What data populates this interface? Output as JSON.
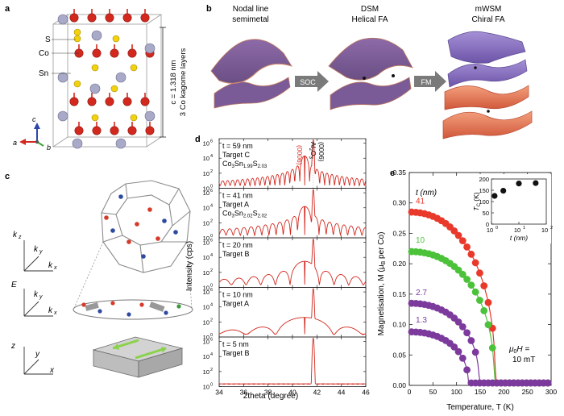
{
  "panels": {
    "a": {
      "letter": "a",
      "labels": {
        "S": "S",
        "Co": "Co",
        "Sn": "Sn"
      },
      "c_value": "c = 1.318 nm",
      "kagome_note": "3 Co kagome layers",
      "axes": {
        "a": "a",
        "b": "b",
        "c": "c"
      }
    },
    "b": {
      "letter": "b",
      "states": [
        {
          "line1": "Nodal line",
          "line2": "semimetal"
        },
        {
          "line1": "DSM",
          "line2": "Helical FA"
        },
        {
          "line1": "mWSM",
          "line2": "Chiral FA"
        }
      ],
      "arrows": [
        "SOC",
        "FM"
      ]
    },
    "c": {
      "letter": "c",
      "axes_k": {
        "kz": "k",
        "kz_sub": "z",
        "ky": "k",
        "ky_sub": "y",
        "kx": "k",
        "kx_sub": "x"
      },
      "axes_e": {
        "E": "E",
        "ky": "k",
        "ky_sub": "y",
        "kx": "k",
        "kx_sub": "x"
      },
      "axes_r": {
        "z": "z",
        "y": "y",
        "x": "x"
      }
    },
    "d": {
      "letter": "d",
      "ylabel": "Intensity (cps)",
      "xlabel": "2theta (degree)",
      "xticks": [
        "34",
        "36",
        "38",
        "40",
        "42",
        "44",
        "46"
      ],
      "yticks": [
        "10",
        "10",
        "10",
        "10"
      ],
      "ytick_exps": [
        "6",
        "4",
        "2",
        "0"
      ],
      "peak_label_sample": "(0006)",
      "peak_label_substrate_main": "Al",
      "peak_label_substrate_sub": "2",
      "peak_label_substrate_o": "O",
      "peak_label_substrate_sub2": "3",
      "peak_label_substrate_2": "(0006)",
      "subpanels": [
        {
          "t": "t = 59 nm",
          "target": "Target C",
          "formula": [
            "Co",
            "3",
            "Sn",
            "1.99",
            "S",
            "2.03"
          ]
        },
        {
          "t": "t = 41 nm",
          "target": "Target A",
          "formula": [
            "Co",
            "3",
            "Sn",
            "2.02",
            "S",
            "2.02"
          ]
        },
        {
          "t": "t = 20 nm",
          "target": "Target B",
          "formula": []
        },
        {
          "t": "t = 10 nm",
          "target": "Target A",
          "formula": []
        },
        {
          "t": "t = 5 nm",
          "target": "Target B",
          "formula": []
        }
      ]
    },
    "e": {
      "letter": "e",
      "ylabel_main": "Magnetisation, M (μ",
      "ylabel_sub": "B",
      "ylabel_end": " per Co)",
      "xlabel": "Temperature, T (K)",
      "legend_title": "t (nm)",
      "field_line1": "μ",
      "field_sub": "0",
      "field_line1_end": "H =",
      "field_line2": "10 mT",
      "xticks": [
        "0",
        "50",
        "100",
        "150",
        "200",
        "250",
        "300"
      ],
      "yticks": [
        "0.00",
        "0.05",
        "0.10",
        "0.15",
        "0.20",
        "0.25",
        "0.30",
        "0.35"
      ],
      "inset": {
        "ylabel_main": "T",
        "ylabel_sub": "C",
        "ylabel_end": " (K)",
        "xlabel": "t (nm)",
        "yticks": [
          "0",
          "50",
          "100",
          "150",
          "200"
        ],
        "xtick_base": "10",
        "xtick_exps": [
          "0",
          "1",
          "2"
        ]
      }
    }
  },
  "chart_data": [
    {
      "type": "line",
      "title": "",
      "xlabel": "2theta (degree)",
      "ylabel": "Intensity (cps)",
      "xlim": [
        34,
        46
      ],
      "yscale": "log",
      "ylim": [
        1,
        1000000
      ],
      "series": [
        {
          "name": "t = 59 nm",
          "peaks": [
            41.0,
            41.7
          ],
          "peak_heights": [
            20000,
            3000000
          ]
        },
        {
          "name": "t = 41 nm",
          "peaks": [
            41.0,
            41.7
          ],
          "peak_heights": [
            15000,
            3000000
          ]
        },
        {
          "name": "t = 20 nm",
          "peaks": [
            41.0,
            41.7
          ],
          "peak_heights": [
            3000,
            3000000
          ]
        },
        {
          "name": "t = 10 nm",
          "peaks": [
            41.0,
            41.7
          ],
          "peak_heights": [
            400,
            3000000
          ]
        },
        {
          "name": "t = 5 nm",
          "peaks": [
            41.7
          ],
          "peak_heights": [
            3000000
          ]
        }
      ]
    },
    {
      "type": "scatter",
      "title": "",
      "xlabel": "Temperature, T (K)",
      "ylabel": "Magnetisation, M (μB per Co)",
      "xlim": [
        0,
        300
      ],
      "ylim": [
        0,
        0.35
      ],
      "series": [
        {
          "name": "41",
          "color": "#e8392b",
          "M0": 0.285,
          "Tc": 182
        },
        {
          "name": "10",
          "color": "#4cc23a",
          "M0": 0.22,
          "Tc": 180
        },
        {
          "name": "2.7",
          "color": "#7b3a9c",
          "M0": 0.135,
          "Tc": 148
        },
        {
          "name": "1.3",
          "color": "#7b3a9c",
          "M0": 0.088,
          "Tc": 125
        }
      ]
    },
    {
      "type": "scatter",
      "title": "",
      "xlabel": "t (nm)",
      "ylabel": "TC (K)",
      "xscale": "log",
      "xlim": [
        1,
        100
      ],
      "ylim": [
        0,
        200
      ],
      "x": [
        1.3,
        2.7,
        10,
        41
      ],
      "y": [
        125,
        148,
        180,
        182
      ]
    }
  ]
}
